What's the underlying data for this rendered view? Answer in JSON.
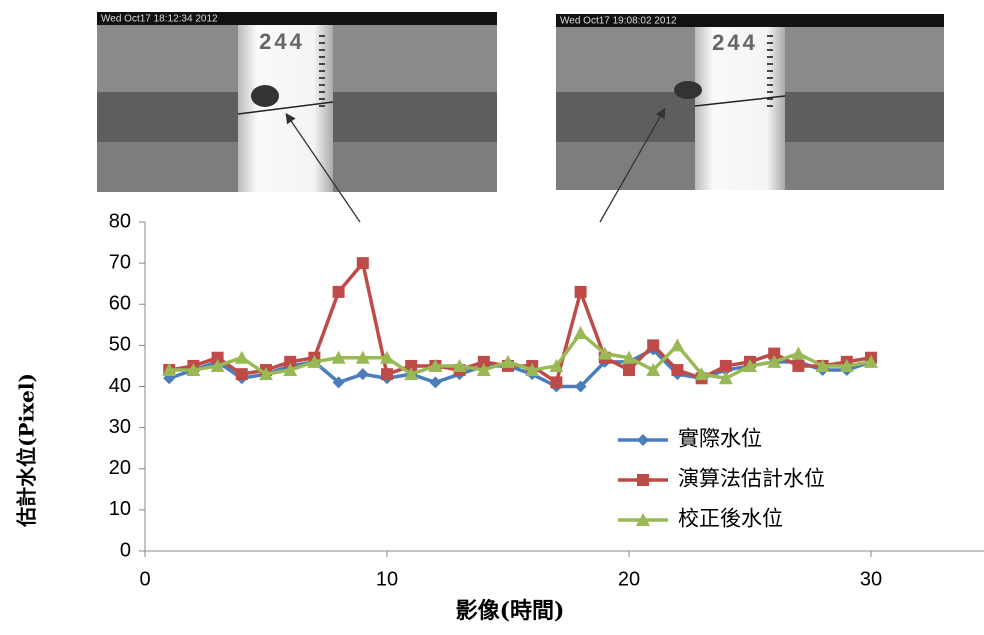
{
  "chart_data": {
    "type": "line",
    "x_label": "影像(時間)",
    "y_label": "估計水位(Pixel)",
    "x": [
      1,
      2,
      3,
      4,
      5,
      6,
      7,
      8,
      9,
      10,
      11,
      12,
      13,
      14,
      15,
      16,
      17,
      18,
      19,
      20,
      21,
      22,
      23,
      24,
      25,
      26,
      27,
      28,
      29,
      30
    ],
    "series": [
      {
        "name": "實際水位",
        "color": "#4a7ebb",
        "marker": "diamond",
        "values": [
          42,
          44,
          46,
          42,
          43,
          45,
          46,
          41,
          43,
          42,
          43,
          41,
          43,
          45,
          45,
          43,
          40,
          40,
          46,
          46,
          49,
          43,
          42,
          44,
          45,
          46,
          46,
          44,
          44,
          46
        ]
      },
      {
        "name": "演算法估計水位",
        "color": "#be4b48",
        "marker": "square",
        "values": [
          44,
          45,
          47,
          43,
          44,
          46,
          47,
          63,
          70,
          43,
          45,
          45,
          44,
          46,
          45,
          45,
          41,
          63,
          47,
          44,
          50,
          44,
          42,
          45,
          46,
          48,
          45,
          45,
          46,
          47
        ]
      },
      {
        "name": "校正後水位",
        "color": "#98b954",
        "marker": "triangle",
        "values": [
          44,
          44,
          45,
          47,
          43,
          44,
          46,
          47,
          47,
          47,
          43,
          45,
          45,
          44,
          46,
          44,
          45,
          53,
          48,
          47,
          44,
          50,
          43,
          42,
          45,
          46,
          48,
          45,
          45,
          46
        ]
      }
    ],
    "xlim": [
      0,
      35
    ],
    "xticks": [
      0,
      10,
      20,
      30
    ],
    "ylim": [
      0,
      80
    ],
    "yticks": [
      0,
      10,
      20,
      30,
      40,
      50,
      60,
      70,
      80
    ],
    "grid": false,
    "annotations": [
      {
        "timestamp": "Wed Oct17  18:12:34  2012",
        "scale_label": "244"
      },
      {
        "timestamp": "Wed Oct17  19:08:02  2012",
        "scale_label": "244"
      }
    ]
  }
}
